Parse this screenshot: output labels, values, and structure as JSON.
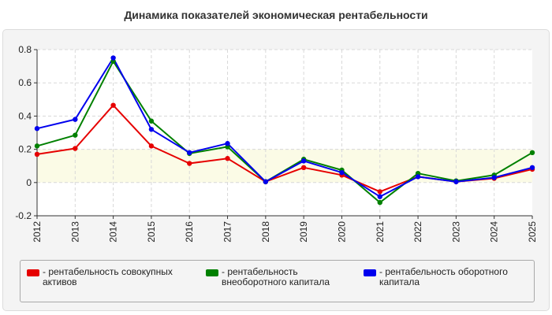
{
  "chart_data": {
    "type": "line",
    "title": "Динамика показателей экономическая рентабельности",
    "categories": [
      "2012",
      "2013",
      "2014",
      "2015",
      "2016",
      "2017",
      "2018",
      "2019",
      "2020",
      "2021",
      "2022",
      "2023",
      "2024",
      "2025"
    ],
    "ylim": [
      -0.2,
      0.8
    ],
    "yticks": [
      -0.2,
      0,
      0.2,
      0.4,
      0.6,
      0.8
    ],
    "ytick_labels": [
      "-0.2",
      "0",
      "0.2",
      "0.4",
      "0.6",
      "0.8"
    ],
    "grid": true,
    "legend_position": "bottom",
    "series": [
      {
        "name": "- рентабельность совокупных активов",
        "color": "#e60000",
        "values": [
          0.17,
          0.205,
          0.465,
          0.22,
          0.115,
          0.145,
          0.005,
          0.09,
          0.045,
          -0.055,
          0.035,
          0.005,
          0.025,
          0.08
        ]
      },
      {
        "name": "- рентабельность внеоборотного капитала",
        "color": "#008000",
        "values": [
          0.22,
          0.285,
          0.73,
          0.37,
          0.175,
          0.215,
          0.005,
          0.14,
          0.075,
          -0.12,
          0.055,
          0.01,
          0.045,
          0.18
        ]
      },
      {
        "name": "- рентабельность оборотного капитала",
        "color": "#0000ee",
        "values": [
          0.325,
          0.38,
          0.75,
          0.32,
          0.18,
          0.235,
          0.005,
          0.13,
          0.06,
          -0.085,
          0.035,
          0.005,
          0.03,
          0.09
        ]
      }
    ]
  }
}
